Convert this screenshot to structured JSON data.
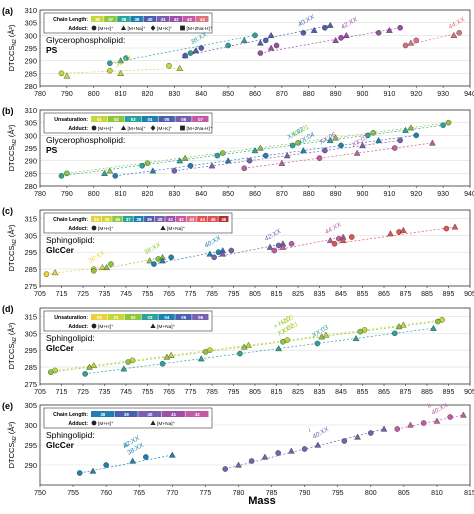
{
  "figure": {
    "xlabel": "Mass"
  },
  "chart_data": [
    {
      "type": "scatter",
      "panel_label": "(a)",
      "ylabel_main": "DTCCS",
      "ylabel_sub": "N2",
      "ylabel_unit": "(Å²)",
      "title_line1": "Glycerophospholipid:",
      "title_line2": "PS",
      "xlim": [
        780,
        940
      ],
      "ylim": [
        280,
        310
      ],
      "xticks": [
        780,
        790,
        800,
        810,
        820,
        830,
        840,
        850,
        860,
        870,
        880,
        890,
        900,
        910,
        920,
        930,
        940
      ],
      "yticks": [
        280,
        285,
        290,
        295,
        300,
        305,
        310
      ],
      "legend": {
        "row1_label": "Chain Length:",
        "swatches": [
          "36",
          "37",
          "38",
          "39",
          "40",
          "41",
          "42",
          "43",
          "44"
        ],
        "swatch_colors": [
          "#c9d63a",
          "#8cc63f",
          "#2aa39a",
          "#1f7fb4",
          "#4a5fb0",
          "#7a5fb0",
          "#9b4fa8",
          "#c35aa3",
          "#e07080"
        ],
        "row2_label": "Adduct:",
        "adducts": [
          "[M+H]⁺",
          "[M+Na]⁺",
          "[M+K]⁺",
          "[M+2Na-H]⁺"
        ]
      },
      "annotations": [
        "36:XX",
        "38:XX",
        "40:XX",
        "42:XX",
        "44:XX"
      ],
      "series": [
        {
          "name": "36:XX",
          "color": "#c9d63a",
          "x": [
            788,
            790,
            806,
            810,
            828,
            832
          ],
          "y": [
            285,
            284,
            286,
            285,
            288,
            287
          ]
        },
        {
          "name": "38:XX",
          "color": "#2aa39a",
          "x": [
            806,
            810,
            812,
            834,
            836,
            838,
            850,
            856,
            860
          ],
          "y": [
            289,
            290,
            291,
            292,
            293,
            294,
            296,
            298,
            300
          ]
        },
        {
          "name": "40:XX",
          "color": "#4a5fb0",
          "x": [
            834,
            838,
            840,
            862,
            864,
            866,
            878,
            882,
            886,
            888
          ],
          "y": [
            292,
            294,
            295,
            297,
            298,
            300,
            301,
            302,
            303,
            304
          ]
        },
        {
          "name": "42:XX",
          "color": "#9b4fa8",
          "x": [
            862,
            866,
            868,
            890,
            892,
            894,
            906,
            910,
            914
          ],
          "y": [
            293,
            295,
            296,
            298,
            299,
            300,
            301,
            302,
            303
          ]
        },
        {
          "name": "44:XX",
          "color": "#e07080",
          "x": [
            916,
            918,
            920,
            934,
            936
          ],
          "y": [
            296,
            297,
            298,
            300,
            301
          ]
        }
      ]
    },
    {
      "type": "scatter",
      "panel_label": "(b)",
      "ylabel_main": "DTCCS",
      "ylabel_sub": "N2",
      "ylabel_unit": "(Å²)",
      "title_line1": "Glycerophospholipid:",
      "title_line2": "PS",
      "xlim": [
        780,
        940
      ],
      "ylim": [
        280,
        310
      ],
      "xticks": [
        780,
        790,
        800,
        810,
        820,
        830,
        840,
        850,
        860,
        870,
        880,
        890,
        900,
        910,
        920,
        930,
        940
      ],
      "yticks": [
        280,
        285,
        290,
        295,
        300,
        305,
        310
      ],
      "legend": {
        "row1_label": "Unsaturation:",
        "swatches": [
          "01",
          "02",
          "03",
          "04",
          "05",
          "06",
          "07"
        ],
        "swatch_colors": [
          "#c9d63a",
          "#8cc63f",
          "#2aa39a",
          "#1f7fb4",
          "#4a5fb0",
          "#7a5fb0",
          "#c35aa3"
        ],
        "row2_label": "Adduct:",
        "adducts": [
          "[M+H]⁺",
          "[M+Na]⁺",
          "[M+K]⁺",
          "[M+2Na-H]⁺"
        ]
      },
      "annotations": [
        "XX:01",
        "XX:02",
        "XX:04",
        "XX:06",
        "XX:07"
      ],
      "series": [
        {
          "name": "XX:01",
          "color": "#8cc63f",
          "x": [
            790,
            806,
            820,
            834,
            848,
            862,
            876,
            890,
            904,
            918,
            932
          ],
          "y": [
            285,
            286,
            289,
            291,
            293,
            295,
            297,
            299,
            301,
            303,
            305
          ]
        },
        {
          "name": "XX:02",
          "color": "#2aa39a",
          "x": [
            788,
            804,
            818,
            832,
            846,
            860,
            874,
            888,
            902,
            916,
            930
          ],
          "y": [
            284,
            285,
            288,
            290,
            292,
            294,
            296,
            298,
            300,
            302,
            304
          ]
        },
        {
          "name": "XX:04",
          "color": "#1f7fb4",
          "x": [
            808,
            822,
            836,
            850,
            864,
            878,
            892,
            906,
            920
          ],
          "y": [
            284,
            286,
            288,
            290,
            292,
            294,
            296,
            298,
            300
          ]
        },
        {
          "name": "XX:06",
          "color": "#7a5fb0",
          "x": [
            830,
            844,
            858,
            872,
            886,
            900,
            914
          ],
          "y": [
            286,
            288,
            290,
            292,
            294,
            296,
            298
          ]
        },
        {
          "name": "XX:07",
          "color": "#c35aa3",
          "x": [
            856,
            870,
            884,
            898,
            912,
            926
          ],
          "y": [
            287,
            289,
            291,
            293,
            295,
            297
          ]
        }
      ]
    },
    {
      "type": "scatter",
      "panel_label": "(c)",
      "ylabel_main": "DTCCS",
      "ylabel_sub": "N2",
      "ylabel_unit": "(Å²)",
      "title_line1": "Sphingolipid:",
      "title_line2": "GlcCer",
      "xlim": [
        705,
        905
      ],
      "ylim": [
        275,
        320
      ],
      "xticks": [
        705,
        715,
        725,
        735,
        745,
        755,
        765,
        775,
        785,
        795,
        805,
        815,
        825,
        835,
        845,
        855,
        865,
        875,
        885,
        895,
        905
      ],
      "yticks": [
        275,
        285,
        295,
        305,
        315
      ],
      "legend": {
        "row1_label": "Chain Length:",
        "swatches": [
          "34",
          "35",
          "36",
          "37",
          "38",
          "39",
          "40",
          "41",
          "42",
          "43",
          "44",
          "45",
          "46"
        ],
        "swatch_colors": [
          "#e8d43a",
          "#c9d63a",
          "#8cc63f",
          "#2aa39a",
          "#1f7fb4",
          "#4a5fb0",
          "#7a5fb0",
          "#9b4fa8",
          "#c35aa3",
          "#e07080",
          "#e8504f",
          "#d9534f",
          "#b03030"
        ],
        "row2_label": "Adduct:",
        "adducts": [
          "[M+H]⁺",
          "[M+Na]⁺"
        ]
      },
      "annotations": [
        "36:XX",
        "38:XX",
        "40:XX",
        "42:XX",
        "44:XX"
      ],
      "series": [
        {
          "name": "34:XX",
          "color": "#e8d43a",
          "x": [
            708,
            712,
            730,
            734
          ],
          "y": [
            282,
            283,
            285,
            286
          ]
        },
        {
          "name": "36:XX",
          "color": "#8cc63f",
          "x": [
            730,
            736,
            738,
            756,
            760,
            762
          ],
          "y": [
            284,
            286,
            288,
            290,
            291,
            292
          ]
        },
        {
          "name": "38:XX",
          "color": "#1f7fb4",
          "x": [
            758,
            762,
            766,
            784,
            788,
            790
          ],
          "y": [
            288,
            290,
            292,
            294,
            295,
            296
          ]
        },
        {
          "name": "40:XX",
          "color": "#7a5fb0",
          "x": [
            786,
            790,
            794,
            812,
            816,
            818
          ],
          "y": [
            292,
            294,
            296,
            298,
            299,
            300
          ]
        },
        {
          "name": "42:XX",
          "color": "#c35aa3",
          "x": [
            814,
            818,
            822,
            840,
            844,
            846
          ],
          "y": [
            296,
            298,
            300,
            302,
            303,
            304
          ]
        },
        {
          "name": "44:XX",
          "color": "#e8504f",
          "x": [
            842,
            846,
            850,
            868,
            872,
            874,
            894,
            898
          ],
          "y": [
            300,
            302,
            304,
            306,
            307,
            308,
            309,
            310
          ]
        }
      ]
    },
    {
      "type": "scatter",
      "panel_label": "(d)",
      "ylabel_main": "DTCCS",
      "ylabel_sub": "N2",
      "ylabel_unit": "(Å²)",
      "title_line1": "Sphingolipid:",
      "title_line2": "GlcCer",
      "xlim": [
        705,
        905
      ],
      "ylim": [
        275,
        320
      ],
      "xticks": [
        705,
        715,
        725,
        735,
        745,
        755,
        765,
        775,
        785,
        795,
        805,
        815,
        825,
        835,
        845,
        855,
        865,
        875,
        885,
        895,
        905
      ],
      "yticks": [
        275,
        285,
        295,
        305,
        315
      ],
      "legend": {
        "row1_label": "Unsaturation:",
        "swatches": [
          "00",
          "01",
          "02",
          "03",
          "04",
          "05",
          "06"
        ],
        "swatch_colors": [
          "#e8d43a",
          "#c9d63a",
          "#8cc63f",
          "#2aa39a",
          "#1f7fb4",
          "#4a5fb0",
          "#7a5fb0"
        ],
        "row2_label": "Adduct:",
        "adducts": [
          "[M+H]⁺",
          "[M+Na]⁺"
        ]
      },
      "annotations": [
        "XX:01",
        "XX:02",
        "XX:03",
        "- H2O",
        "+ H2O"
      ],
      "series": [
        {
          "name": "XX:01",
          "color": "#c9d63a",
          "x": [
            712,
            730,
            748,
            766,
            784,
            802,
            820,
            838,
            856,
            874,
            892
          ],
          "y": [
            283,
            286,
            289,
            292,
            295,
            298,
            301,
            304,
            307,
            310,
            313
          ]
        },
        {
          "name": "XX:02",
          "color": "#8cc63f",
          "x": [
            710,
            728,
            746,
            764,
            782,
            800,
            818,
            836,
            854,
            872,
            890
          ],
          "y": [
            282,
            285,
            288,
            291,
            294,
            297,
            300,
            303,
            306,
            309,
            312
          ]
        },
        {
          "name": "XX:03",
          "color": "#2aa39a",
          "x": [
            726,
            744,
            762,
            780,
            798,
            816,
            834,
            852,
            870,
            888
          ],
          "y": [
            281,
            284,
            287,
            290,
            293,
            296,
            299,
            302,
            305,
            308
          ]
        }
      ]
    },
    {
      "type": "scatter",
      "panel_label": "(e)",
      "ylabel_main": "DTCCS",
      "ylabel_sub": "N2",
      "ylabel_unit": "(Å²)",
      "title_line1": "Sphingolipid:",
      "title_line2": "GlcCer",
      "xlim": [
        750,
        815
      ],
      "ylim": [
        285,
        305
      ],
      "xticks": [
        750,
        755,
        760,
        765,
        770,
        775,
        780,
        785,
        790,
        795,
        800,
        805,
        810,
        815
      ],
      "yticks": [
        290,
        295,
        300,
        305
      ],
      "legend": {
        "row1_label": "Chain Length:",
        "swatches": [
          "38",
          "39",
          "40",
          "41",
          "42"
        ],
        "swatch_colors": [
          "#1f7fb4",
          "#4a5fb0",
          "#7a5fb0",
          "#9b4fa8",
          "#c35aa3"
        ],
        "row2_label": "Adduct:",
        "adducts": [
          "[M+H]⁺",
          "[M+Na]⁺"
        ]
      },
      "annotations": [
        "38:XX",
        "40:XX",
        "40:XX",
        "42:XX",
        "i",
        "ii",
        "iii"
      ],
      "series": [
        {
          "name": "38:XX",
          "color": "#1f7fb4",
          "x": [
            756,
            758,
            760,
            764,
            766,
            770
          ],
          "y": [
            288,
            288.5,
            290,
            291,
            292,
            292.5
          ]
        },
        {
          "name": "40:XX",
          "color": "#7a5fb0",
          "x": [
            778,
            780,
            782,
            784,
            786,
            788,
            790,
            792,
            796,
            798,
            800,
            802
          ],
          "y": [
            289,
            290,
            291,
            292,
            293,
            293.5,
            294,
            295,
            296,
            297,
            298,
            299
          ]
        },
        {
          "name": "42:XX",
          "color": "#c35aa3",
          "x": [
            804,
            806,
            808,
            810,
            812,
            814
          ],
          "y": [
            299,
            300,
            300.5,
            301,
            302,
            302.5
          ]
        }
      ]
    }
  ]
}
